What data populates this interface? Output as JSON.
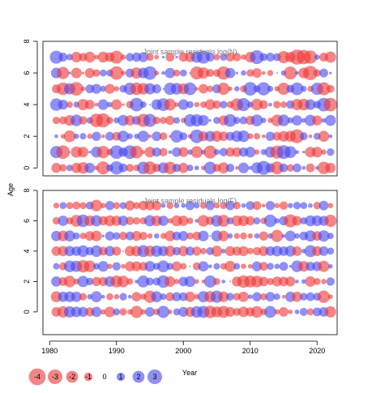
{
  "chart_data": [
    {
      "type": "scatter",
      "title": "Joint sample residuals log(N)",
      "xlabel": "Year",
      "ylabel": "Age",
      "xlim": [
        1979,
        2023
      ],
      "ylim": [
        -0.5,
        8
      ],
      "x_ticks": [
        1980,
        1990,
        2000,
        2010,
        2020
      ],
      "y_ticks": [
        0,
        2,
        4,
        6,
        8
      ],
      "years": [
        1981,
        1982,
        1983,
        1984,
        1985,
        1986,
        1987,
        1988,
        1989,
        1990,
        1991,
        1992,
        1993,
        1994,
        1995,
        1996,
        1997,
        1998,
        1999,
        2000,
        2001,
        2002,
        2003,
        2004,
        2005,
        2006,
        2007,
        2008,
        2009,
        2010,
        2011,
        2012,
        2013,
        2014,
        2015,
        2016,
        2017,
        2018,
        2019,
        2020,
        2021,
        2022
      ],
      "ages": [
        0,
        1,
        2,
        3,
        4,
        5,
        6,
        7
      ],
      "positive_color": "#4444ee",
      "negative_color": "#ee3333",
      "residuals": [
        [
          -1.4,
          -0.8,
          0.6,
          -1.5,
          -1.9,
          1.5,
          -0.3,
          -2.4,
          0.7,
          2.5,
          1.1,
          -0.9,
          -0.6,
          2.2,
          -2.4,
          -1.0,
          1.7,
          -2.2,
          1.0,
          -1.5,
          0.6,
          0.3,
          -0.3,
          2.2,
          -0.9,
          -1.7,
          1.0,
          -0.2,
          1.6,
          0.2,
          1.8,
          2.7,
          1.2,
          -2.3,
          1.1,
          -0.8,
          1.1,
          0.2,
          -1.1,
          0.2,
          -2.2,
          -1.5
        ],
        [
          2.1,
          -2.6,
          0.0,
          -1.8,
          -1.6,
          0.1,
          1.7,
          -2.2,
          -0.6,
          2.6,
          1.2,
          2.6,
          -2.3,
          -0.2,
          -1.6,
          1.2,
          -1.0,
          0.2,
          1.3,
          -1.4,
          0.4,
          -2.0,
          0.3,
          -2.4,
          0.5,
          1.0,
          -1.2,
          -1.3,
          1.2,
          1.6,
          -0.4,
          0.5,
          1.7,
          -2.4,
          2.7,
          2.0,
          0.2,
          0.1,
          -1.6,
          -1.6,
          -0.4,
          0.8
        ],
        [
          0.2,
          -0.3,
          -2.0,
          0.4,
          0.6,
          -0.4,
          1.2,
          -0.2,
          1.1,
          -1.1,
          1.8,
          0.5,
          0.4,
          1.8,
          -0.2,
          1.3,
          -0.9,
          -0.1,
          2.2,
          0.9,
          -0.3,
          2.6,
          -1.4,
          1.6,
          -1.7,
          -1.3,
          1.1,
          1.8,
          1.9,
          -0.5,
          -0.6,
          -0.2,
          1.2,
          -1.1,
          -1.6,
          -1.7,
          -2.7,
          0.9,
          -0.2,
          0.7,
          -1.7,
          0.2
        ],
        [
          -0.8,
          -0.9,
          -1.6,
          1.9,
          -1.0,
          0.6,
          -2.6,
          -2.8,
          -0.7,
          0.5,
          1.7,
          -1.5,
          1.1,
          -2.4,
          2.4,
          -0.8,
          -0.7,
          -1.2,
          0.6,
          -0.4,
          2.2,
          2.1,
          1.7,
          0.1,
          0.7,
          -1.4,
          2.3,
          0.7,
          0.9,
          -1.2,
          2.0,
          0.4,
          -0.4,
          -1.9,
          1.9,
          0.5,
          1.5,
          0.3,
          1.8,
          -1.4,
          0.3,
          1.7
        ],
        [
          2.2,
          1.4,
          -0.6,
          0.5,
          -1.8,
          -1.3,
          -0.2,
          1.6,
          0.4,
          -1.6,
          -0.1,
          -0.8,
          2.6,
          0.6,
          0.0,
          1.6,
          2.3,
          -2.0,
          -0.3,
          1.6,
          0.7,
          -0.4,
          -0.6,
          -1.6,
          -1.0,
          0.8,
          -0.7,
          -2.2,
          2.4,
          0.5,
          -1.9,
          -1.1,
          0.2,
          -0.8,
          -0.6,
          1.0,
          -1.8,
          -1.9,
          1.6,
          0.8,
          2.6,
          -2.6
        ],
        [
          -1.1,
          -2.3,
          1.8,
          -2.6,
          -0.3,
          1.1,
          1.4,
          0.5,
          -1.4,
          -0.4,
          0.8,
          2.1,
          -2.2,
          -1.9,
          1.8,
          1.2,
          0.0,
          2.1,
          1.9,
          -1.7,
          2.3,
          -0.2,
          -1.3,
          -0.6,
          1.1,
          -2.1,
          -0.3,
          0.4,
          -0.7,
          2.6,
          0.7,
          2.5,
          0.5,
          -0.4,
          -2.1,
          0.9,
          2.3,
          0.5,
          -0.5,
          2.1,
          -2.4,
          -0.9
        ],
        [
          1.6,
          -2.1,
          0.1,
          -1.6,
          -0.1,
          -1.4,
          -0.8,
          0.7,
          0.7,
          -2.6,
          -0.3,
          1.1,
          -1.8,
          1.6,
          2.6,
          -0.3,
          0.2,
          1.5,
          -0.7,
          0.7,
          0.0,
          -2.4,
          -1.8,
          -0.9,
          -0.8,
          -2.5,
          1.5,
          0.1,
          0.4,
          -0.8,
          -1.3,
          -0.2,
          -0.5,
          0.0,
          0.4,
          -2.4,
          0.2,
          -1.6,
          -2.9,
          -0.8,
          1.1,
          0.1
        ],
        [
          2.4,
          1.1,
          0.6,
          -1.6,
          -1.0,
          -1.7,
          -0.3,
          -1.7,
          -1.3,
          -2.4,
          -0.4,
          1.0,
          1.2,
          1.4,
          -0.8,
          -0.3,
          0.1,
          -1.1,
          0.1,
          -1.2,
          -1.4,
          1.8,
          2.4,
          1.1,
          -0.6,
          0.7,
          -1.1,
          -1.0,
          -0.4,
          -1.6,
          2.7,
          0.9,
          1.1,
          0.9,
          -2.1,
          -1.5,
          -3.2,
          -2.9,
          -2.5,
          0.4,
          -1.1,
          -1.8
        ]
      ]
    },
    {
      "type": "scatter",
      "title": "Joint sample residuals log(F)",
      "xlabel": "Year",
      "ylabel": "Age",
      "xlim": [
        1979,
        2023
      ],
      "ylim": [
        -1.5,
        8
      ],
      "x_ticks": [
        1980,
        1990,
        2000,
        2010,
        2020
      ],
      "y_ticks": [
        0,
        2,
        4,
        6,
        8
      ],
      "years": [
        1981,
        1982,
        1983,
        1984,
        1985,
        1986,
        1987,
        1988,
        1989,
        1990,
        1991,
        1992,
        1993,
        1994,
        1995,
        1996,
        1997,
        1998,
        1999,
        2000,
        2001,
        2002,
        2003,
        2004,
        2005,
        2006,
        2007,
        2008,
        2009,
        2010,
        2011,
        2012,
        2013,
        2014,
        2015,
        2016,
        2017,
        2018,
        2019,
        2020,
        2021,
        2022
      ],
      "ages": [
        0,
        1,
        2,
        3,
        4,
        5,
        6,
        7
      ],
      "positive_color": "#4444ee",
      "negative_color": "#ee3333",
      "residuals": [
        [
          -1.3,
          -1.8,
          1.8,
          1.6,
          1.4,
          -1.2,
          1.5,
          -0.4,
          -1.6,
          0.7,
          -0.8,
          -0.4,
          -2.1,
          -0.4,
          1.3,
          -0.6,
          2.1,
          -0.3,
          0.7,
          1.4,
          -1.4,
          1.9,
          2.0,
          -2.2,
          -1.7,
          -2.0,
          -1.4,
          -0.9,
          -1.6,
          -1.2,
          -1.9,
          -0.6,
          2.0,
          -0.4,
          -1.3,
          -0.3,
          0.3,
          0.9,
          -0.7,
          1.1,
          1.3,
          -1.8
        ],
        [
          -1.7,
          1.5,
          1.6,
          1.5,
          -0.8,
          0.4,
          1.7,
          0.2,
          -0.7,
          -0.4,
          0.8,
          0.2,
          -1.3,
          -0.5,
          -2.1,
          1.7,
          0.6,
          -1.1,
          1.2,
          1.1,
          -1.5,
          -0.4,
          1.8,
          -1.8,
          2.1,
          -1.6,
          0.9,
          -0.8,
          -1.5,
          0.3,
          1.2,
          -0.7,
          1.3,
          0.6,
          -0.2,
          1.5,
          -1.5,
          0.8,
          1.1,
          0.9,
          -2.2,
          -0.3
        ],
        [
          1.5,
          -1.1,
          -1.9,
          -0.5,
          1.8,
          0.8,
          -1.2,
          -1.2,
          1.6,
          -2.0,
          -1.9,
          -0.6,
          0.2,
          2.0,
          0.9,
          0.9,
          2.2,
          -1.6,
          -0.4,
          1.3,
          1.7,
          -0.3,
          -0.2,
          2.1,
          -0.7,
          0.2,
          0.0,
          -1.4,
          -2.2,
          -2.0,
          -1.9,
          -1.3,
          -0.7,
          -1.4,
          -1.3,
          -1.4,
          0.2,
          0.3,
          -1.6,
          -0.7,
          -0.4,
          1.0
        ],
        [
          0.6,
          -0.9,
          1.9,
          1.8,
          -2.2,
          -1.9,
          0.6,
          1.6,
          -0.4,
          1.0,
          -0.3,
          -1.4,
          -1.4,
          -1.1,
          1.6,
          0.7,
          2.0,
          0.7,
          -1.4,
          -0.6,
          0.0,
          -0.9,
          1.5,
          0.2,
          0.6,
          -0.6,
          -1.7,
          0.6,
          -0.4,
          -0.3,
          1.4,
          -1.1,
          0.7,
          0.4,
          1.1,
          0.1,
          1.9,
          -1.6,
          1.2,
          1.3,
          -1.8,
          0.3
        ],
        [
          -1.3,
          -1.5,
          1.5,
          1.3,
          1.9,
          1.0,
          1.9,
          -1.1,
          1.5,
          -1.2,
          0.0,
          -1.5,
          -1.6,
          2.0,
          -1.7,
          1.8,
          1.5,
          -1.7,
          1.0,
          -1.5,
          1.2,
          -1.2,
          -0.6,
          0.9,
          -1.7,
          0.3,
          -1.4,
          -1.2,
          -1.4,
          -0.6,
          -1.0,
          -1.4,
          1.3,
          1.6,
          1.3,
          1.7,
          -1.3,
          0.3,
          2.0,
          -1.4,
          1.3,
          0.7
        ],
        [
          1.5,
          -1.6,
          1.7,
          0.7,
          -0.6,
          -1.3,
          -1.6,
          0.1,
          1.2,
          0.8,
          -1.0,
          1.1,
          -1.4,
          -1.0,
          -0.4,
          0.4,
          -0.5,
          -1.6,
          1.1,
          1.4,
          -0.7,
          -1.1,
          1.6,
          0.0,
          1.7,
          -1.6,
          0.4,
          -0.5,
          -0.7,
          -0.4,
          0.4,
          -1.2,
          0.4,
          -2.1,
          0.2,
          1.6,
          0.4,
          1.1,
          1.8,
          -1.3,
          1.8,
          0.6
        ],
        [
          -0.8,
          1.5,
          -0.7,
          -2.0,
          2.2,
          -1.6,
          1.8,
          -1.2,
          -1.7,
          -1.5,
          1.5,
          -1.0,
          -0.8,
          -0.7,
          1.8,
          -1.6,
          1.5,
          -0.4,
          -1.7,
          -1.5,
          -0.6,
          0.2,
          -1.9,
          -1.0,
          1.9,
          -2.0,
          0.7,
          -1.6,
          -1.6,
          -1.2,
          0.7,
          -0.6,
          2.2,
          0.4,
          1.2,
          -2.4,
          -1.3,
          0.7,
          1.7,
          1.6,
          1.4,
          -2.1
        ],
        [
          -0.5,
          0.7,
          -0.7,
          -0.9,
          -0.7,
          0.9,
          -1.9,
          -0.4,
          1.2,
          -0.7,
          0.7,
          -1.4,
          -0.7,
          -1.3,
          -1.3,
          -1.3,
          0.3,
          -0.7,
          0.4,
          0.3,
          1.2,
          0.5,
          -0.6,
          1.2,
          -0.5,
          -0.7,
          1.2,
          -0.8,
          0.3,
          1.1,
          -1.1,
          -0.2,
          1.2,
          -0.4,
          -1.0,
          0.4,
          0.8,
          0.7,
          0.3,
          -0.8,
          1.3,
          -0.4
        ]
      ]
    }
  ],
  "legend": {
    "items": [
      {
        "label": "-4",
        "value": -4
      },
      {
        "label": "-3",
        "value": -3
      },
      {
        "label": "-2",
        "value": -2
      },
      {
        "label": "-1",
        "value": -1
      },
      {
        "label": "0",
        "value": 0
      },
      {
        "label": "1",
        "value": 1
      },
      {
        "label": "2",
        "value": 2
      },
      {
        "label": "3",
        "value": 3
      }
    ]
  }
}
